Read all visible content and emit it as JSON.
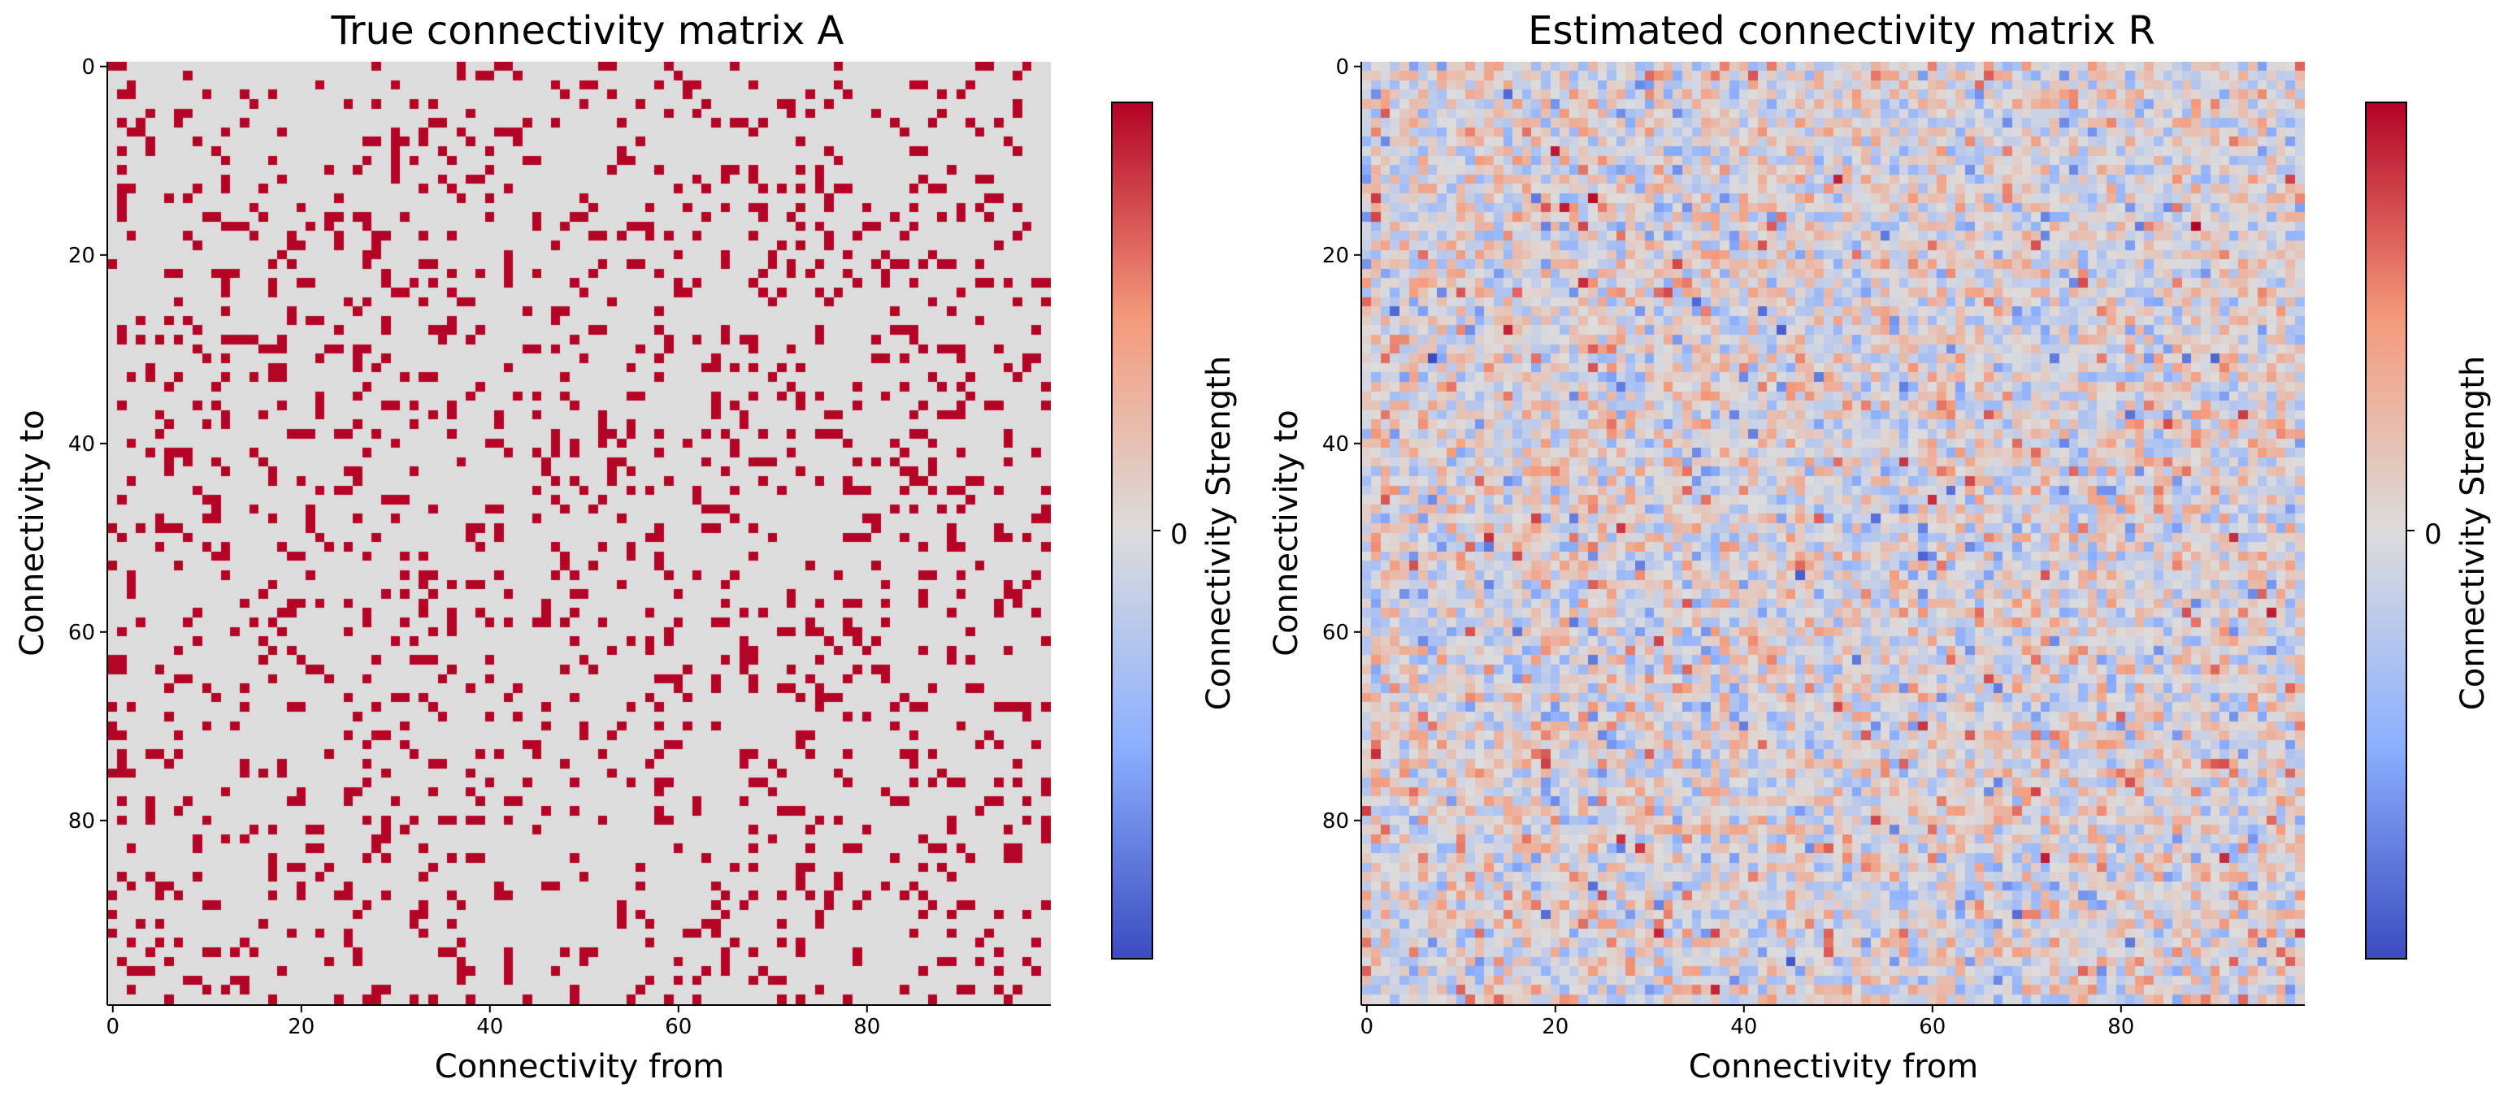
{
  "chart_data": [
    {
      "type": "heatmap",
      "title": "True connectivity matrix A",
      "xlabel": "Connectivity from",
      "ylabel": "Connectivity to",
      "colorbar_label": "Connectivity Strength",
      "colorbar_ticks": [
        "0"
      ],
      "x_ticks": [
        0,
        20,
        40,
        60,
        80
      ],
      "y_ticks": [
        0,
        20,
        40,
        60,
        80
      ],
      "size": 100,
      "value_range": [
        -1,
        1
      ],
      "colormap": "coolwarm",
      "cells": "binary sparse matrix: about 14% of entries equal to 1 (dark red), remaining entries 0 (light grey)",
      "density": 0.14,
      "seed": 7
    },
    {
      "type": "heatmap",
      "title": "Estimated connectivity matrix R",
      "xlabel": "Connectivity from",
      "ylabel": "Connectivity to",
      "colorbar_label": "Connectivity Strength",
      "colorbar_ticks": [
        "0"
      ],
      "x_ticks": [
        0,
        20,
        40,
        60,
        80
      ],
      "y_ticks": [
        0,
        20,
        40,
        60,
        80
      ],
      "size": 100,
      "value_range": [
        -1,
        1
      ],
      "colormap": "coolwarm",
      "cells": "dense noisy matrix with values mostly within ±0.5 around 0",
      "noise_sd": 0.28,
      "seed": 19
    }
  ],
  "colors": {
    "cmap_min": "#3b4cc0",
    "cmap_mid": "#dddcdc",
    "cmap_max": "#b40426"
  }
}
